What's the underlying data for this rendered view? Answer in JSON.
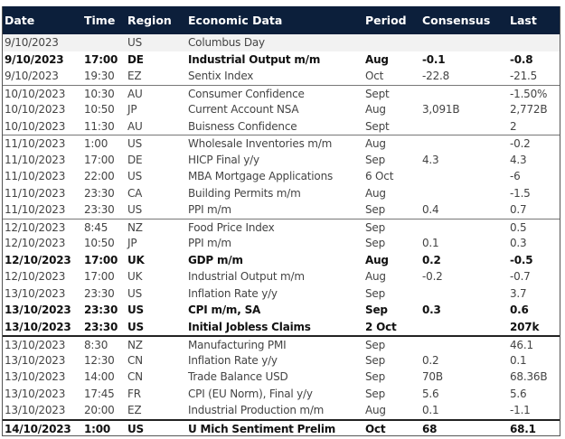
{
  "columns": [
    "Date",
    "Time",
    "Region",
    "Economic Data",
    "Period",
    "Consensus",
    "Last"
  ],
  "rows": [
    {
      "date": "9/10/2023",
      "time": "",
      "region": "US",
      "event": "Columbus Day",
      "period": "",
      "consensus": "",
      "last": "",
      "bold": false
    },
    {
      "date": "9/10/2023",
      "time": "17:00",
      "region": "DE",
      "event": "Industrial Output m/m",
      "period": "Aug",
      "consensus": "-0.1",
      "last": "-0.8",
      "bold": true
    },
    {
      "date": "9/10/2023",
      "time": "19:30",
      "region": "EZ",
      "event": "Sentix Index",
      "period": "Oct",
      "consensus": "-22.8",
      "last": "-21.5",
      "bold": false
    },
    {
      "date": "10/10/2023",
      "time": "10:30",
      "region": "AU",
      "event": "Consumer Confidence",
      "period": "Sept",
      "consensus": "",
      "last": "-1.50%",
      "bold": false
    },
    {
      "date": "10/10/2023",
      "time": "10:50",
      "region": "JP",
      "event": "Current Account NSA",
      "period": "Aug",
      "consensus": "3,091B",
      "last": "2,772B",
      "bold": false
    },
    {
      "date": "10/10/2023",
      "time": "11:30",
      "region": "AU",
      "event": "Buisness Confidence",
      "period": "Sept",
      "consensus": "",
      "last": "2",
      "bold": false
    },
    {
      "date": "11/10/2023",
      "time": "1:00",
      "region": "US",
      "event": "Wholesale Inventories m/m",
      "period": "Aug",
      "consensus": "",
      "last": "-0.2",
      "bold": false
    },
    {
      "date": "11/10/2023",
      "time": "17:00",
      "region": "DE",
      "event": "HICP Final y/y",
      "period": "Sep",
      "consensus": "4.3",
      "last": "4.3",
      "bold": false
    },
    {
      "date": "11/10/2023",
      "time": "22:00",
      "region": "US",
      "event": "MBA Mortgage Applications",
      "period": "6 Oct",
      "consensus": "",
      "last": "-6",
      "bold": false
    },
    {
      "date": "11/10/2023",
      "time": "23:30",
      "region": "CA",
      "event": "Building Permits m/m",
      "period": "Aug",
      "consensus": "",
      "last": "-1.5",
      "bold": false
    },
    {
      "date": "11/10/2023",
      "time": "23:30",
      "region": "US",
      "event": "PPI m/m",
      "period": "Sep",
      "consensus": "0.4",
      "last": "0.7",
      "bold": false
    },
    {
      "date": "12/10/2023",
      "time": "8:45",
      "region": "NZ",
      "event": "Food Price Index",
      "period": "Sep",
      "consensus": "",
      "last": "0.5",
      "bold": false
    },
    {
      "date": "12/10/2023",
      "time": "10:50",
      "region": "JP",
      "event": "PPI m/m",
      "period": "Sep",
      "consensus": "0.1",
      "last": "0.3",
      "bold": false
    },
    {
      "date": "12/10/2023",
      "time": "17:00",
      "region": "UK",
      "event": "GDP m/m",
      "period": "Aug",
      "consensus": "0.2",
      "last": "-0.5",
      "bold": true
    },
    {
      "date": "12/10/2023",
      "time": "17:00",
      "region": "UK",
      "event": "Industrial Output m/m",
      "period": "Aug",
      "consensus": "-0.2",
      "last": "-0.7",
      "bold": false
    },
    {
      "date": "13/10/2023",
      "time": "23:30",
      "region": "US",
      "event": "Inflation Rate y/y",
      "period": "Sep",
      "consensus": "",
      "last": "3.7",
      "bold": false
    },
    {
      "date": "13/10/2023",
      "time": "23:30",
      "region": "US",
      "event": "CPI m/m, SA",
      "period": "Sep",
      "consensus": "0.3",
      "last": "0.6",
      "bold": true
    },
    {
      "date": "13/10/2023",
      "time": "23:30",
      "region": "US",
      "event": "Initial Jobless Claims",
      "period": "2 Oct",
      "consensus": "",
      "last": "207k",
      "bold": true
    },
    {
      "date": "13/10/2023",
      "time": "8:30",
      "region": "NZ",
      "event": "Manufacturing PMI",
      "period": "Sep",
      "consensus": "",
      "last": "46.1",
      "bold": false
    },
    {
      "date": "13/10/2023",
      "time": "12:30",
      "region": "CN",
      "event": "Inflation Rate y/y",
      "period": "Sep",
      "consensus": "0.2",
      "last": "0.1",
      "bold": false
    },
    {
      "date": "13/10/2023",
      "time": "14:00",
      "region": "CN",
      "event": "Trade Balance USD",
      "period": "Sep",
      "consensus": "70B",
      "last": "68.36B",
      "bold": false
    },
    {
      "date": "13/10/2023",
      "time": "17:45",
      "region": "FR",
      "event": "CPI (EU Norm), Final y/y",
      "period": "Sep",
      "consensus": "5.6",
      "last": "5.6",
      "bold": false
    },
    {
      "date": "13/10/2023",
      "time": "20:00",
      "region": "EZ",
      "event": "Industrial Production m/m",
      "period": "Aug",
      "consensus": "0.1",
      "last": "-1.1",
      "bold": false
    },
    {
      "date": "14/10/2023",
      "time": "1:00",
      "region": "US",
      "event": "U Mich Sentiment Prelim",
      "period": "Oct",
      "consensus": "68",
      "last": "68.1",
      "bold": true
    }
  ],
  "colors": {
    "header_bg": "#0c1f3b",
    "header_text": "#ffffff"
  }
}
